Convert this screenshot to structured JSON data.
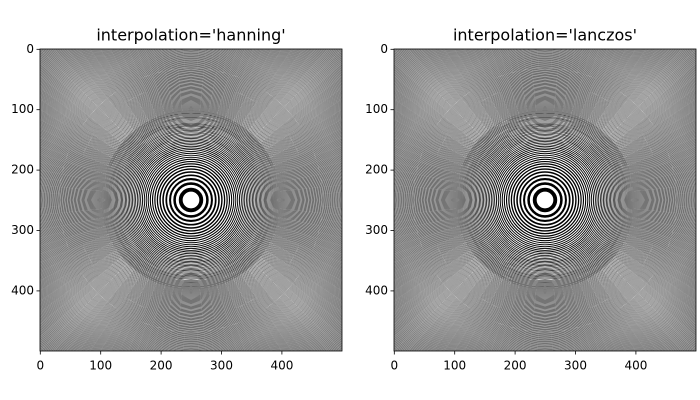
{
  "chart_data": [
    {
      "type": "image",
      "title": "interpolation='hanning'",
      "xlim": [
        -0.5,
        499.5
      ],
      "ylim": [
        499.5,
        -0.5
      ],
      "xticks": [
        0,
        100,
        200,
        300,
        400
      ],
      "yticks": [
        0,
        100,
        200,
        300,
        400
      ]
    },
    {
      "type": "image",
      "title": "interpolation='lanczos'",
      "xlim": [
        -0.5,
        499.5
      ],
      "ylim": [
        499.5,
        -0.5
      ],
      "xticks": [
        0,
        100,
        200,
        300,
        400
      ],
      "yticks": [
        0,
        100,
        200,
        300,
        400
      ]
    }
  ]
}
